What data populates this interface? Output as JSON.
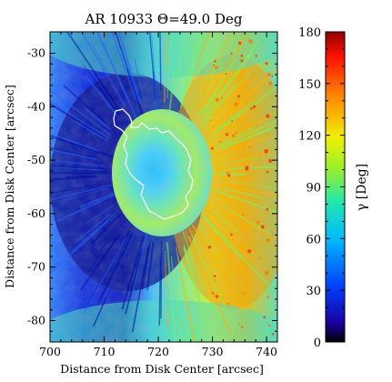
{
  "chart_data": {
    "type": "heatmap",
    "title": "AR 10933 Θ=49.0 Deg",
    "xlabel": "Distance from Disk Center [arcsec]",
    "ylabel": "Distance from Disk Center [arcsec]",
    "xlim": [
      700,
      742
    ],
    "ylim": [
      -84,
      -26
    ],
    "x_ticks": [
      "700",
      "710",
      "720",
      "730",
      "740"
    ],
    "y_ticks": [
      "-30",
      "-40",
      "-50",
      "-60",
      "-70",
      "-80"
    ],
    "colorbar": {
      "label": "γ [Deg]",
      "range": [
        0,
        180
      ],
      "ticks": [
        "0",
        "30",
        "60",
        "90",
        "120",
        "150",
        "180"
      ],
      "colormap": "rainbow (black-blue-cyan-green-yellow-red-darkred)"
    },
    "umbra_contour_color": "#ffffff",
    "description_values": {
      "umbra_center_gamma_deg": 45,
      "penumbra_left_gamma_deg": 25,
      "penumbra_right_gamma_deg": 135,
      "quiet_sun_gamma_deg": 90
    }
  }
}
